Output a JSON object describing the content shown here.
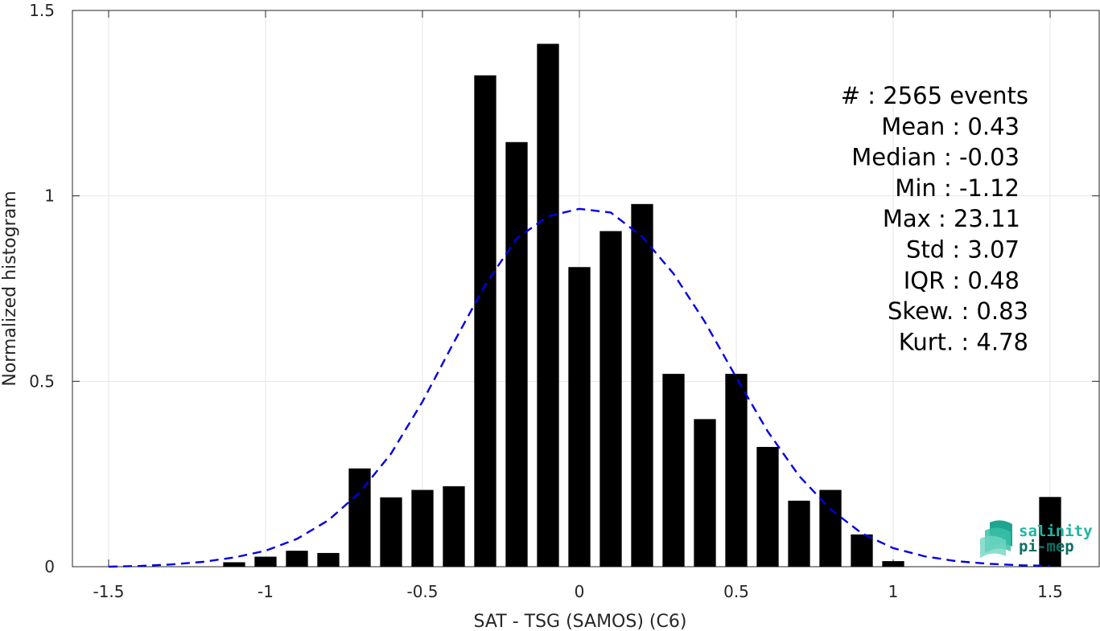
{
  "chart_data": {
    "type": "bar",
    "title": "",
    "xlabel": "SAT - TSG (SAMOS) (C6)",
    "ylabel": "Normalized histogram",
    "xlim": [
      -1.6,
      1.6
    ],
    "ylim": [
      0,
      1.5
    ],
    "grid": true,
    "xticks": [
      -1.5,
      -1,
      -0.5,
      0,
      0.5,
      1,
      1.5
    ],
    "xtick_labels": [
      "-1.5",
      "-1",
      "-0.5",
      "0",
      "0.5",
      "1",
      "1.5"
    ],
    "yticks": [
      0,
      0.5,
      1,
      1.5
    ],
    "ytick_labels": [
      "0",
      "0.5",
      "1",
      "1.5"
    ],
    "bar_color": "#000000",
    "bar_width": 0.07,
    "bars": [
      {
        "x": -1.1,
        "y": 0.012
      },
      {
        "x": -1.0,
        "y": 0.027
      },
      {
        "x": -0.9,
        "y": 0.043
      },
      {
        "x": -0.8,
        "y": 0.037
      },
      {
        "x": -0.7,
        "y": 0.265
      },
      {
        "x": -0.6,
        "y": 0.187
      },
      {
        "x": -0.5,
        "y": 0.207
      },
      {
        "x": -0.4,
        "y": 0.217
      },
      {
        "x": -0.3,
        "y": 1.325
      },
      {
        "x": -0.2,
        "y": 1.145
      },
      {
        "x": -0.1,
        "y": 1.41
      },
      {
        "x": 0.0,
        "y": 0.808
      },
      {
        "x": 0.1,
        "y": 0.905
      },
      {
        "x": 0.2,
        "y": 0.978
      },
      {
        "x": 0.3,
        "y": 0.52
      },
      {
        "x": 0.4,
        "y": 0.398
      },
      {
        "x": 0.5,
        "y": 0.52
      },
      {
        "x": 0.6,
        "y": 0.323
      },
      {
        "x": 0.7,
        "y": 0.178
      },
      {
        "x": 0.8,
        "y": 0.207
      },
      {
        "x": 0.9,
        "y": 0.087
      },
      {
        "x": 1.0,
        "y": 0.015
      },
      {
        "x": 1.5,
        "y": 0.188
      }
    ],
    "fit_curve": {
      "style": "dashed",
      "color": "#0000e6",
      "points": [
        {
          "x": -1.5,
          "y": 0.0
        },
        {
          "x": -1.4,
          "y": 0.002
        },
        {
          "x": -1.3,
          "y": 0.006
        },
        {
          "x": -1.2,
          "y": 0.013
        },
        {
          "x": -1.1,
          "y": 0.025
        },
        {
          "x": -1.0,
          "y": 0.043
        },
        {
          "x": -0.9,
          "y": 0.075
        },
        {
          "x": -0.8,
          "y": 0.125
        },
        {
          "x": -0.7,
          "y": 0.2
        },
        {
          "x": -0.6,
          "y": 0.305
        },
        {
          "x": -0.5,
          "y": 0.445
        },
        {
          "x": -0.4,
          "y": 0.605
        },
        {
          "x": -0.3,
          "y": 0.76
        },
        {
          "x": -0.2,
          "y": 0.885
        },
        {
          "x": -0.1,
          "y": 0.945
        },
        {
          "x": 0.0,
          "y": 0.965
        },
        {
          "x": 0.1,
          "y": 0.955
        },
        {
          "x": 0.2,
          "y": 0.89
        },
        {
          "x": 0.3,
          "y": 0.79
        },
        {
          "x": 0.4,
          "y": 0.66
        },
        {
          "x": 0.5,
          "y": 0.51
        },
        {
          "x": 0.6,
          "y": 0.365
        },
        {
          "x": 0.7,
          "y": 0.245
        },
        {
          "x": 0.8,
          "y": 0.155
        },
        {
          "x": 0.9,
          "y": 0.09
        },
        {
          "x": 1.0,
          "y": 0.05
        },
        {
          "x": 1.1,
          "y": 0.028
        },
        {
          "x": 1.2,
          "y": 0.015
        },
        {
          "x": 1.3,
          "y": 0.008
        },
        {
          "x": 1.4,
          "y": 0.004
        },
        {
          "x": 1.5,
          "y": 0.002
        }
      ]
    },
    "stats": [
      "#  : 2565 events",
      "Mean : 0.43",
      "Median : -0.03",
      "Min : -1.12",
      "Max : 23.11",
      "Std : 3.07",
      "IQR : 0.48",
      "Skew. : 0.83",
      "Kurt. : 4.78"
    ],
    "logo": {
      "line1": "salinity",
      "line2": "pi-mep",
      "line1_color": "#21b5a0",
      "line2_color": "#0d6f63"
    }
  }
}
